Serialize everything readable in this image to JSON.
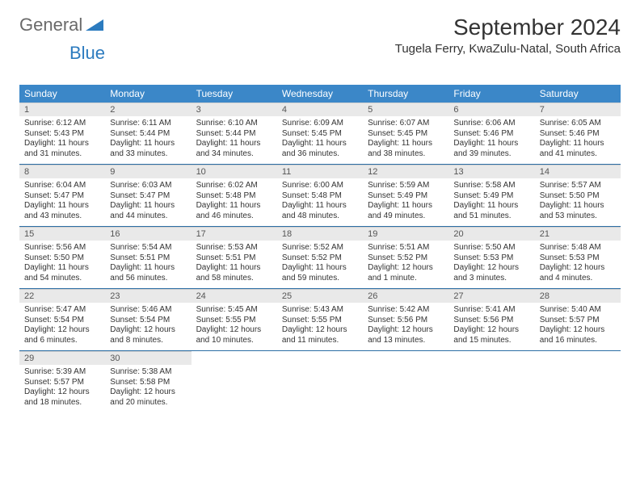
{
  "brand": {
    "part1": "General",
    "part2": "Blue"
  },
  "title": "September 2024",
  "location": "Tugela Ferry, KwaZulu-Natal, South Africa",
  "colors": {
    "header_bg": "#3b87c8",
    "header_text": "#ffffff",
    "date_bar_bg": "#e9e9e9",
    "week_border": "#2c6ea5",
    "logo_gray": "#6a6a6a",
    "logo_blue": "#2c7bbf"
  },
  "day_names": [
    "Sunday",
    "Monday",
    "Tuesday",
    "Wednesday",
    "Thursday",
    "Friday",
    "Saturday"
  ],
  "weeks": [
    [
      {
        "date": "1",
        "sunrise": "Sunrise: 6:12 AM",
        "sunset": "Sunset: 5:43 PM",
        "daylight1": "Daylight: 11 hours",
        "daylight2": "and 31 minutes."
      },
      {
        "date": "2",
        "sunrise": "Sunrise: 6:11 AM",
        "sunset": "Sunset: 5:44 PM",
        "daylight1": "Daylight: 11 hours",
        "daylight2": "and 33 minutes."
      },
      {
        "date": "3",
        "sunrise": "Sunrise: 6:10 AM",
        "sunset": "Sunset: 5:44 PM",
        "daylight1": "Daylight: 11 hours",
        "daylight2": "and 34 minutes."
      },
      {
        "date": "4",
        "sunrise": "Sunrise: 6:09 AM",
        "sunset": "Sunset: 5:45 PM",
        "daylight1": "Daylight: 11 hours",
        "daylight2": "and 36 minutes."
      },
      {
        "date": "5",
        "sunrise": "Sunrise: 6:07 AM",
        "sunset": "Sunset: 5:45 PM",
        "daylight1": "Daylight: 11 hours",
        "daylight2": "and 38 minutes."
      },
      {
        "date": "6",
        "sunrise": "Sunrise: 6:06 AM",
        "sunset": "Sunset: 5:46 PM",
        "daylight1": "Daylight: 11 hours",
        "daylight2": "and 39 minutes."
      },
      {
        "date": "7",
        "sunrise": "Sunrise: 6:05 AM",
        "sunset": "Sunset: 5:46 PM",
        "daylight1": "Daylight: 11 hours",
        "daylight2": "and 41 minutes."
      }
    ],
    [
      {
        "date": "8",
        "sunrise": "Sunrise: 6:04 AM",
        "sunset": "Sunset: 5:47 PM",
        "daylight1": "Daylight: 11 hours",
        "daylight2": "and 43 minutes."
      },
      {
        "date": "9",
        "sunrise": "Sunrise: 6:03 AM",
        "sunset": "Sunset: 5:47 PM",
        "daylight1": "Daylight: 11 hours",
        "daylight2": "and 44 minutes."
      },
      {
        "date": "10",
        "sunrise": "Sunrise: 6:02 AM",
        "sunset": "Sunset: 5:48 PM",
        "daylight1": "Daylight: 11 hours",
        "daylight2": "and 46 minutes."
      },
      {
        "date": "11",
        "sunrise": "Sunrise: 6:00 AM",
        "sunset": "Sunset: 5:48 PM",
        "daylight1": "Daylight: 11 hours",
        "daylight2": "and 48 minutes."
      },
      {
        "date": "12",
        "sunrise": "Sunrise: 5:59 AM",
        "sunset": "Sunset: 5:49 PM",
        "daylight1": "Daylight: 11 hours",
        "daylight2": "and 49 minutes."
      },
      {
        "date": "13",
        "sunrise": "Sunrise: 5:58 AM",
        "sunset": "Sunset: 5:49 PM",
        "daylight1": "Daylight: 11 hours",
        "daylight2": "and 51 minutes."
      },
      {
        "date": "14",
        "sunrise": "Sunrise: 5:57 AM",
        "sunset": "Sunset: 5:50 PM",
        "daylight1": "Daylight: 11 hours",
        "daylight2": "and 53 minutes."
      }
    ],
    [
      {
        "date": "15",
        "sunrise": "Sunrise: 5:56 AM",
        "sunset": "Sunset: 5:50 PM",
        "daylight1": "Daylight: 11 hours",
        "daylight2": "and 54 minutes."
      },
      {
        "date": "16",
        "sunrise": "Sunrise: 5:54 AM",
        "sunset": "Sunset: 5:51 PM",
        "daylight1": "Daylight: 11 hours",
        "daylight2": "and 56 minutes."
      },
      {
        "date": "17",
        "sunrise": "Sunrise: 5:53 AM",
        "sunset": "Sunset: 5:51 PM",
        "daylight1": "Daylight: 11 hours",
        "daylight2": "and 58 minutes."
      },
      {
        "date": "18",
        "sunrise": "Sunrise: 5:52 AM",
        "sunset": "Sunset: 5:52 PM",
        "daylight1": "Daylight: 11 hours",
        "daylight2": "and 59 minutes."
      },
      {
        "date": "19",
        "sunrise": "Sunrise: 5:51 AM",
        "sunset": "Sunset: 5:52 PM",
        "daylight1": "Daylight: 12 hours",
        "daylight2": "and 1 minute."
      },
      {
        "date": "20",
        "sunrise": "Sunrise: 5:50 AM",
        "sunset": "Sunset: 5:53 PM",
        "daylight1": "Daylight: 12 hours",
        "daylight2": "and 3 minutes."
      },
      {
        "date": "21",
        "sunrise": "Sunrise: 5:48 AM",
        "sunset": "Sunset: 5:53 PM",
        "daylight1": "Daylight: 12 hours",
        "daylight2": "and 4 minutes."
      }
    ],
    [
      {
        "date": "22",
        "sunrise": "Sunrise: 5:47 AM",
        "sunset": "Sunset: 5:54 PM",
        "daylight1": "Daylight: 12 hours",
        "daylight2": "and 6 minutes."
      },
      {
        "date": "23",
        "sunrise": "Sunrise: 5:46 AM",
        "sunset": "Sunset: 5:54 PM",
        "daylight1": "Daylight: 12 hours",
        "daylight2": "and 8 minutes."
      },
      {
        "date": "24",
        "sunrise": "Sunrise: 5:45 AM",
        "sunset": "Sunset: 5:55 PM",
        "daylight1": "Daylight: 12 hours",
        "daylight2": "and 10 minutes."
      },
      {
        "date": "25",
        "sunrise": "Sunrise: 5:43 AM",
        "sunset": "Sunset: 5:55 PM",
        "daylight1": "Daylight: 12 hours",
        "daylight2": "and 11 minutes."
      },
      {
        "date": "26",
        "sunrise": "Sunrise: 5:42 AM",
        "sunset": "Sunset: 5:56 PM",
        "daylight1": "Daylight: 12 hours",
        "daylight2": "and 13 minutes."
      },
      {
        "date": "27",
        "sunrise": "Sunrise: 5:41 AM",
        "sunset": "Sunset: 5:56 PM",
        "daylight1": "Daylight: 12 hours",
        "daylight2": "and 15 minutes."
      },
      {
        "date": "28",
        "sunrise": "Sunrise: 5:40 AM",
        "sunset": "Sunset: 5:57 PM",
        "daylight1": "Daylight: 12 hours",
        "daylight2": "and 16 minutes."
      }
    ],
    [
      {
        "date": "29",
        "sunrise": "Sunrise: 5:39 AM",
        "sunset": "Sunset: 5:57 PM",
        "daylight1": "Daylight: 12 hours",
        "daylight2": "and 18 minutes."
      },
      {
        "date": "30",
        "sunrise": "Sunrise: 5:38 AM",
        "sunset": "Sunset: 5:58 PM",
        "daylight1": "Daylight: 12 hours",
        "daylight2": "and 20 minutes."
      },
      null,
      null,
      null,
      null,
      null
    ]
  ]
}
